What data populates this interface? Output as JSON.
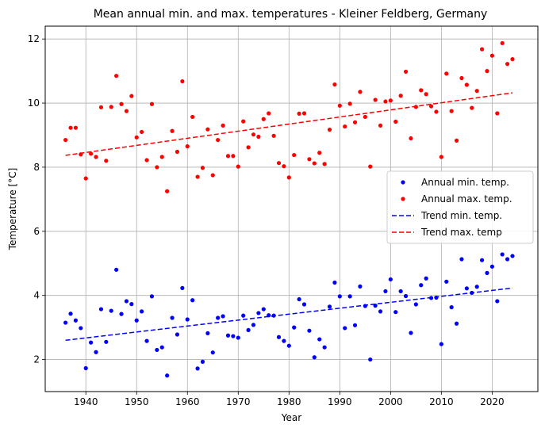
{
  "chart_data": {
    "type": "scatter",
    "title": "Mean annual min. and max. temperatures - Kleiner Feldberg, Germany",
    "xlabel": "Year",
    "ylabel": "Temperature [°C]",
    "xlim": [
      1932,
      2029
    ],
    "ylim": [
      1.0,
      12.4
    ],
    "x_ticks": [
      1940,
      1950,
      1960,
      1970,
      1980,
      1990,
      2000,
      2010,
      2020
    ],
    "y_ticks": [
      2,
      4,
      6,
      8,
      10,
      12
    ],
    "grid": true,
    "legend_position": "center-right",
    "x": [
      1936,
      1937,
      1938,
      1939,
      1940,
      1941,
      1942,
      1943,
      1944,
      1945,
      1946,
      1947,
      1948,
      1949,
      1950,
      1951,
      1952,
      1953,
      1954,
      1955,
      1956,
      1957,
      1958,
      1959,
      1960,
      1961,
      1962,
      1963,
      1964,
      1965,
      1966,
      1967,
      1968,
      1969,
      1970,
      1971,
      1972,
      1973,
      1974,
      1975,
      1976,
      1977,
      1978,
      1979,
      1980,
      1981,
      1982,
      1983,
      1984,
      1985,
      1986,
      1987,
      1988,
      1989,
      1990,
      1991,
      1992,
      1993,
      1994,
      1995,
      1996,
      1997,
      1998,
      1999,
      2000,
      2001,
      2002,
      2003,
      2004,
      2005,
      2006,
      2007,
      2008,
      2009,
      2010,
      2011,
      2012,
      2013,
      2014,
      2015,
      2016,
      2017,
      2018,
      2019,
      2020,
      2021,
      2022,
      2023,
      2024
    ],
    "series": [
      {
        "name": "Annual min. temp.",
        "kind": "points",
        "color": "#0000ff",
        "values": [
          3.15,
          3.43,
          3.22,
          2.98,
          1.73,
          2.53,
          2.23,
          3.57,
          2.55,
          3.52,
          4.8,
          3.42,
          3.82,
          3.73,
          3.22,
          3.5,
          2.58,
          3.97,
          2.3,
          2.38,
          1.5,
          3.3,
          2.78,
          4.23,
          3.25,
          3.85,
          1.72,
          1.93,
          2.82,
          2.22,
          3.3,
          3.35,
          2.75,
          2.73,
          2.68,
          3.37,
          2.92,
          3.08,
          3.45,
          3.57,
          3.38,
          3.37,
          2.7,
          2.58,
          2.43,
          3.0,
          3.88,
          3.72,
          2.9,
          2.07,
          2.63,
          2.38,
          3.65,
          4.4,
          3.97,
          2.98,
          3.97,
          3.07,
          4.28,
          3.67,
          2.0,
          3.68,
          3.5,
          4.13,
          4.5,
          3.48,
          4.13,
          3.98,
          2.83,
          3.72,
          4.32,
          4.53,
          3.92,
          3.93,
          2.48,
          4.43,
          3.63,
          3.12,
          5.13,
          4.22,
          4.08,
          4.27,
          5.1,
          4.7,
          4.9,
          3.82,
          5.28,
          5.13,
          5.23
        ]
      },
      {
        "name": "Annual max. temp.",
        "kind": "points",
        "color": "#ff0000",
        "values": [
          8.85,
          9.23,
          9.23,
          8.4,
          7.65,
          8.42,
          8.32,
          9.87,
          8.2,
          9.88,
          10.85,
          9.97,
          9.75,
          10.22,
          8.93,
          9.1,
          8.22,
          9.97,
          8.0,
          8.32,
          7.25,
          9.13,
          8.48,
          10.68,
          8.65,
          9.57,
          7.7,
          7.98,
          9.18,
          7.75,
          8.85,
          9.3,
          8.35,
          8.35,
          8.02,
          9.43,
          8.62,
          9.02,
          8.95,
          9.5,
          9.68,
          8.98,
          8.13,
          8.03,
          7.68,
          8.38,
          9.67,
          9.68,
          8.25,
          8.12,
          8.45,
          8.1,
          9.17,
          10.58,
          9.92,
          9.27,
          9.98,
          9.4,
          10.35,
          9.57,
          8.02,
          10.1,
          9.3,
          10.05,
          10.08,
          9.42,
          10.23,
          10.98,
          8.9,
          9.88,
          10.4,
          10.28,
          9.9,
          9.73,
          8.32,
          10.92,
          9.75,
          8.83,
          10.78,
          10.57,
          9.85,
          10.38,
          11.68,
          11.0,
          11.48,
          9.68,
          11.87,
          11.22,
          11.37
        ]
      },
      {
        "name": "Trend min. temp.",
        "kind": "line",
        "color": "#0000ff",
        "x": [
          1936,
          2024
        ],
        "values": [
          2.6,
          4.23
        ]
      },
      {
        "name": "Trend max. temp",
        "kind": "line",
        "color": "#ff0000",
        "x": [
          1936,
          2024
        ],
        "values": [
          8.37,
          10.32
        ]
      }
    ]
  }
}
